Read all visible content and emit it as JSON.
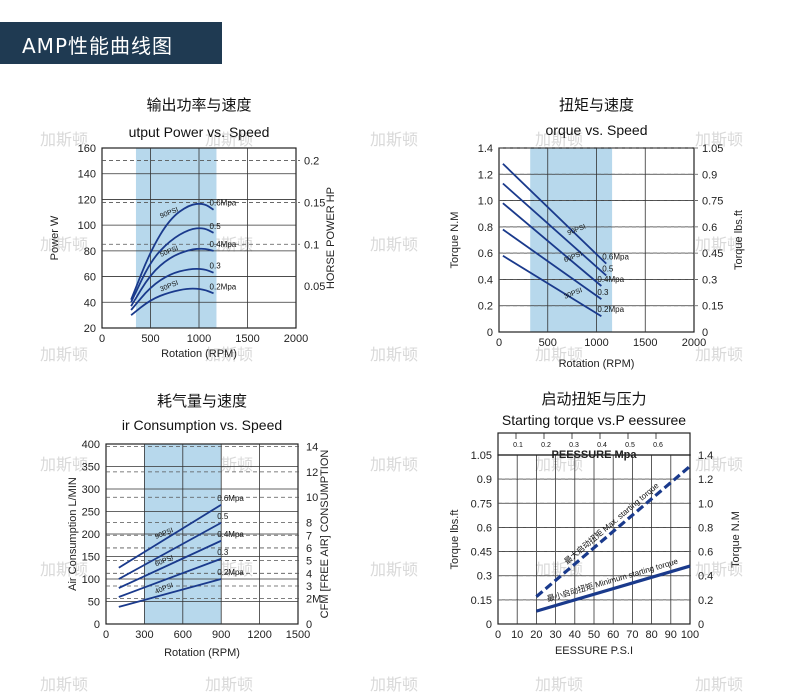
{
  "banner": {
    "title": "AMP性能曲线图"
  },
  "watermarks": [
    "加斯顿"
  ],
  "chart_data": [
    {
      "id": "power",
      "type": "line",
      "title": "输出功率与速度",
      "subtitle": "utput  Power  vs. Speed",
      "xlabel": "Rotation (RPM)",
      "ylabel": "Power  W",
      "y2label": "HORSE POWER  HP",
      "xlim": [
        0,
        2000
      ],
      "ylim": [
        20,
        160
      ],
      "xticks": [
        "0",
        "500",
        "1000",
        "1500",
        "2000"
      ],
      "yticks": [
        "20",
        "40",
        "60",
        "80",
        "100",
        "120",
        "140",
        "160"
      ],
      "y2ticks": [
        "0.05",
        "0.1",
        "0.15",
        "0.2"
      ],
      "y2values": [
        0.05,
        0.1,
        0.15,
        0.2
      ],
      "y2lim": [
        0.0215,
        0.215
      ],
      "shaded_range": [
        350,
        1180
      ],
      "series": [
        {
          "name": "0.6Mpa",
          "x": [
            300,
            500,
            700,
            900,
            1050,
            1150
          ],
          "y": [
            42,
            80,
            105,
            116,
            117,
            112
          ]
        },
        {
          "name": "0.5",
          "x": [
            300,
            500,
            700,
            900,
            1050,
            1150
          ],
          "y": [
            40,
            72,
            88,
            97,
            98,
            94
          ]
        },
        {
          "name": "0.4Mpa",
          "x": [
            300,
            500,
            700,
            900,
            1050,
            1150
          ],
          "y": [
            37,
            62,
            75,
            81,
            82,
            80
          ]
        },
        {
          "name": "0.3",
          "x": [
            300,
            500,
            700,
            900,
            1050,
            1150
          ],
          "y": [
            34,
            52,
            62,
            66,
            66,
            63
          ]
        },
        {
          "name": "0.2Mpa",
          "x": [
            300,
            500,
            700,
            900,
            1050,
            1150
          ],
          "y": [
            30,
            42,
            48,
            51,
            50,
            47
          ]
        }
      ],
      "annotations": [
        "90PSI",
        "50PSI",
        "30PSI"
      ]
    },
    {
      "id": "torque",
      "type": "line",
      "title": "扭矩与速度",
      "subtitle": "orque  vs. Speed",
      "xlabel": "Rotation  (RPM)",
      "ylabel": "Torque  N.M",
      "y2label": "Torque  lbs.ft",
      "xlim": [
        0,
        2000
      ],
      "ylim": [
        0,
        1.4
      ],
      "xticks": [
        "0",
        "500",
        "1000",
        "1500",
        "2000"
      ],
      "yticks": [
        "0",
        "0.2",
        "0.4",
        "0.6",
        "0.8",
        "1.0",
        "1.2",
        "1.4"
      ],
      "y2ticks": [
        "0",
        "0.15",
        "0.3",
        "0.45",
        "0.6",
        "0.75",
        "0.9",
        "1.05"
      ],
      "y2values": [
        0,
        0.15,
        0.3,
        0.45,
        0.6,
        0.75,
        0.9,
        1.05
      ],
      "y2lim": [
        0,
        1.05
      ],
      "shaded_range": [
        320,
        1160
      ],
      "series": [
        {
          "name": "0.6Mpa",
          "x": [
            40,
            1100
          ],
          "y": [
            1.28,
            0.52
          ]
        },
        {
          "name": "0.5",
          "x": [
            40,
            1100
          ],
          "y": [
            1.13,
            0.43
          ]
        },
        {
          "name": "0.4Mpa",
          "x": [
            40,
            1050
          ],
          "y": [
            0.98,
            0.35
          ]
        },
        {
          "name": "0.3",
          "x": [
            40,
            1050
          ],
          "y": [
            0.78,
            0.25
          ]
        },
        {
          "name": "0.2Mpa",
          "x": [
            40,
            1050
          ],
          "y": [
            0.58,
            0.12
          ]
        }
      ],
      "annotations": [
        "90PSI",
        "60PSI",
        "30PSI"
      ]
    },
    {
      "id": "air",
      "type": "line",
      "title": "耗气量与速度",
      "subtitle": "ir Consumption  vs. Speed",
      "xlabel": "Rotation (RPM)",
      "ylabel": "Air Consumption L/MIN",
      "y2label": "CFM [FREE AIR] CONSUMPTION",
      "xlim": [
        0,
        1500
      ],
      "ylim": [
        0,
        400
      ],
      "xticks": [
        "0",
        "300",
        "600",
        "900",
        "1200",
        "1500"
      ],
      "yticks": [
        "0",
        "50",
        "100",
        "150",
        "200",
        "250",
        "300",
        "350",
        "400"
      ],
      "y2ticks": [
        "0",
        "2M",
        "3",
        "4",
        "5",
        "6",
        "7",
        "8",
        "10",
        "12",
        "14"
      ],
      "y2values": [
        0,
        2,
        3,
        4,
        5,
        6,
        7,
        8,
        10,
        12,
        14
      ],
      "y2lim": [
        0,
        14.2
      ],
      "shaded_range": [
        300,
        900
      ],
      "series": [
        {
          "name": "0.6Mpa",
          "x": [
            100,
            900
          ],
          "y": [
            125,
            265
          ]
        },
        {
          "name": "0.5",
          "x": [
            100,
            900
          ],
          "y": [
            100,
            225
          ]
        },
        {
          "name": "0.4Mpa",
          "x": [
            100,
            900
          ],
          "y": [
            80,
            185
          ]
        },
        {
          "name": "0.3",
          "x": [
            100,
            900
          ],
          "y": [
            60,
            145
          ]
        },
        {
          "name": "0.2Mpa",
          "x": [
            100,
            900
          ],
          "y": [
            38,
            100
          ]
        }
      ],
      "annotations": [
        "90PSI",
        "60PSI",
        "40PSI"
      ]
    },
    {
      "id": "starting",
      "type": "line",
      "title": "启动扭矩与压力",
      "subtitle": "Starting torque vs.P        eessuree",
      "xlabel": "EESSURE   P.S.I",
      "ylabel": "Torque lbs.ft",
      "y2label": "Torque N.M",
      "top_axis_label": "PEESSURE  Mpa",
      "xlim": [
        0,
        100
      ],
      "ylim": [
        0,
        1.05
      ],
      "xticks": [
        "0",
        "10",
        "20",
        "30",
        "40",
        "50",
        "60",
        "70",
        "80",
        "90",
        "100"
      ],
      "yticks": [
        "0",
        "0.15",
        "0.3",
        "0.45",
        "0.6",
        "0.75",
        "0.9",
        "1.05"
      ],
      "topticks": [
        "0.1",
        "0.2",
        "0.3",
        "0.4",
        "0.5",
        "0.6"
      ],
      "y2ticks": [
        "0",
        "0.2",
        "0.4",
        "0.6",
        "0.8",
        "1.0",
        "1.2",
        "1.4"
      ],
      "y2values": [
        0,
        0.2,
        0.4,
        0.6,
        0.8,
        1.0,
        1.2,
        1.4
      ],
      "y2lim": [
        0,
        1.4
      ],
      "series": [
        {
          "name": "最大启动扭矩 Max. starting torque",
          "x": [
            20,
            100
          ],
          "y": [
            0.17,
            0.98
          ],
          "style": "dashed"
        },
        {
          "name": "最小启动扭矩 Minimum starting torque",
          "x": [
            20,
            100
          ],
          "y": [
            0.08,
            0.36
          ],
          "style": "solid"
        }
      ]
    }
  ]
}
